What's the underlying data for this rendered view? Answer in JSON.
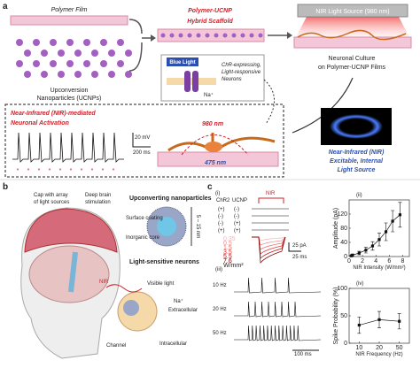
{
  "panel_a": {
    "label": "a",
    "polymer_film": "Polymer Film",
    "ucnp_lines": [
      "Upconversion",
      "Nanoparticles (UCNPs)"
    ],
    "title_lines": [
      "Polymer-UCNP",
      "Hybrid Scaffold"
    ],
    "nir_source": "NIR Light Source (980 nm)",
    "blue_light": "Blue Light",
    "na": "Na⁺",
    "chr_lines": [
      "ChR-expressing,",
      "Light-responsive",
      "Neurons"
    ],
    "culture_lines": [
      "Neuronal Culture",
      "on Polymer-UCNP Films"
    ],
    "activation_lines": [
      "Near-Infrared (NIR)-mediated",
      "Neuronal Activation"
    ],
    "nir_wavelength": "980 nm",
    "blue_wavelength": "475 nm",
    "scale_v": "20 mV",
    "scale_t": "200 ms",
    "internal_lines": [
      "Near-Infrared (NIR)",
      "Excitable, Internal",
      "Light Source"
    ]
  },
  "panel_b": {
    "label": "b",
    "cap_lines": [
      "Cap with array",
      "of light sources"
    ],
    "deep_lines": [
      "Deep brain",
      "stimulation"
    ],
    "np_title": "Upconverting nanoparticles",
    "surface": "Surface coating",
    "core": "Inorganic core",
    "size": "5 – 15 nm",
    "neuron_title": "Light-sensitive neurons",
    "visible": "Visible light",
    "nir": "NIR",
    "na": "Na⁺",
    "extracellular": "Extracellular",
    "channel": "Channel",
    "intracellular": "Intracellular"
  },
  "panel_c": {
    "label": "c",
    "i": {
      "label": "(i)",
      "chr2": "ChR2",
      "ucnp": "UCNP",
      "nir": "NIR",
      "rows": [
        [
          "(+)",
          "(-)"
        ],
        [
          "(-)",
          "(-)"
        ],
        [
          "(-)",
          "(+)"
        ],
        [
          "(+)",
          "(+)"
        ]
      ],
      "legend": [
        0.35,
        0.5,
        1.5,
        3.5,
        5.5,
        7.6
      ],
      "legend_unit": "W/mm²",
      "scale_i": "25 pA",
      "scale_t": "25 ms"
    },
    "ii": {
      "label": "(ii)",
      "ylabel": "Amplitude (pA)",
      "xlabel": "NIR Intensity (W/mm²)",
      "x": [
        0.35,
        0.5,
        1.5,
        2.5,
        3.5,
        4.5,
        5.5,
        6.5,
        7.6
      ],
      "values": [
        2,
        4,
        10,
        18,
        30,
        48,
        70,
        100,
        118
      ],
      "errors": [
        2,
        3,
        5,
        8,
        12,
        18,
        25,
        30,
        35
      ],
      "xlim": [
        0,
        9
      ],
      "ylim": [
        0,
        160
      ],
      "xticks": [
        0,
        2,
        4,
        6,
        8
      ],
      "yticks": [
        0,
        40,
        80,
        120
      ]
    },
    "iii": {
      "label": "(iii)",
      "freqs": [
        "10 Hz",
        "20 Hz",
        "50 Hz"
      ],
      "scale_t": "100 ms"
    },
    "iv": {
      "label": "(iv)",
      "ylabel": "Spike Probability (%)",
      "xlabel": "NIR Frequency (Hz)",
      "categories": [
        10,
        20,
        50
      ],
      "values": [
        33,
        43,
        40
      ],
      "errors": [
        15,
        15,
        14
      ],
      "ylim": [
        0,
        100
      ],
      "yticks": [
        0,
        50,
        100
      ]
    }
  }
}
